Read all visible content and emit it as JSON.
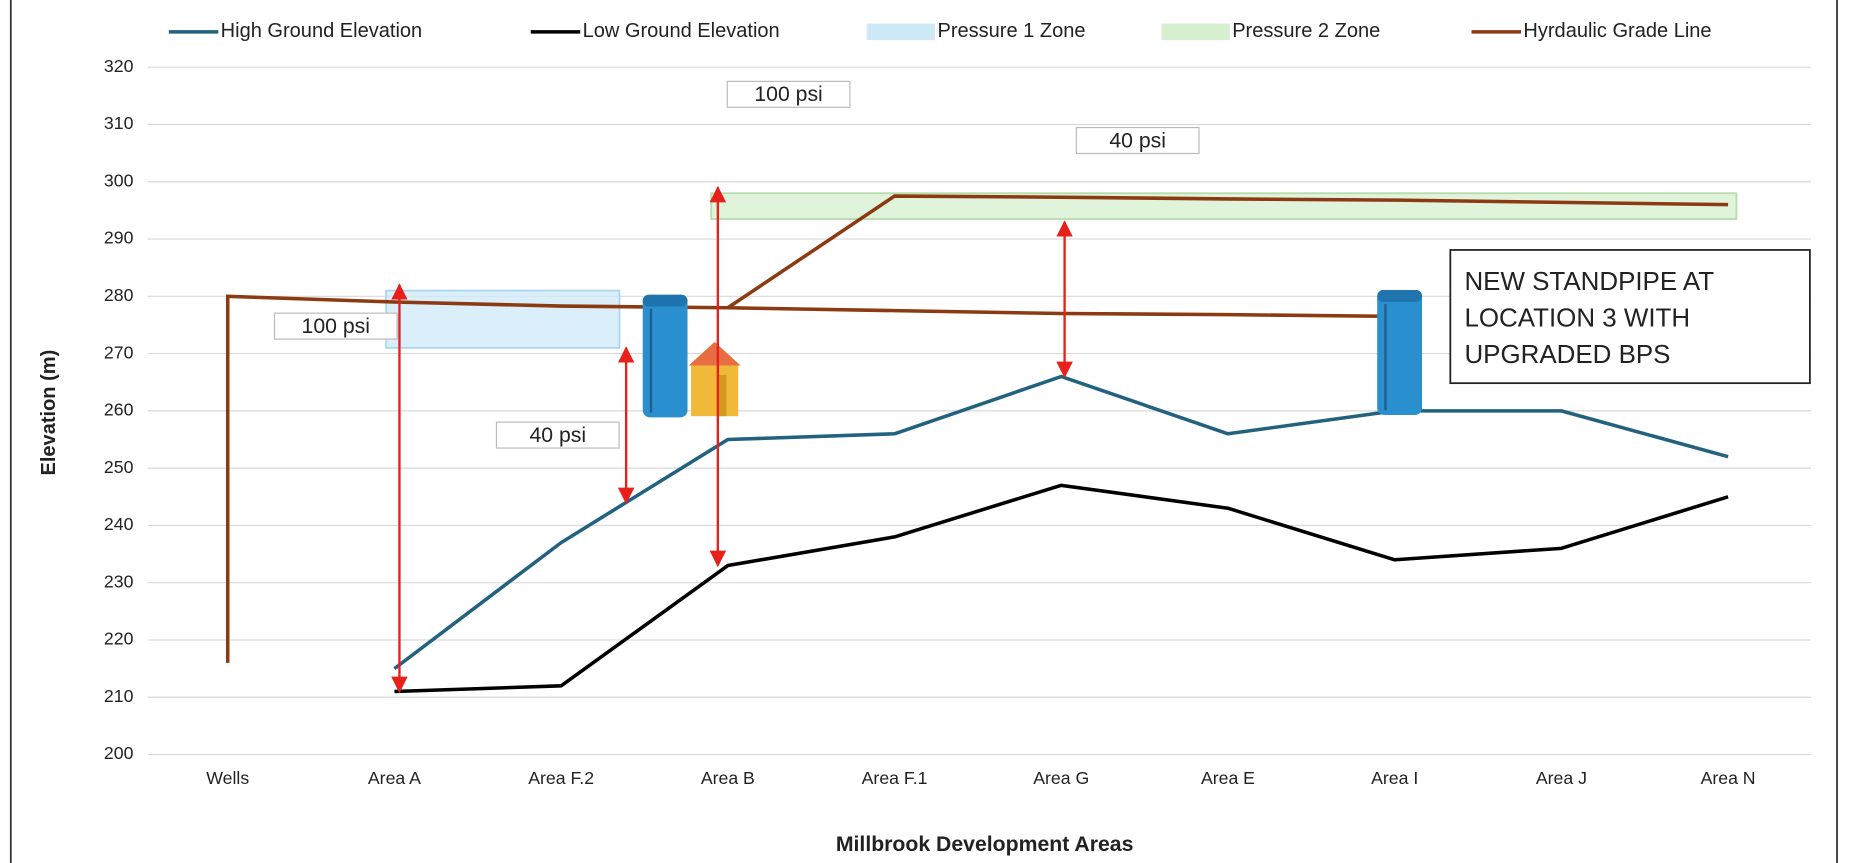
{
  "chart_data": {
    "type": "line",
    "xlabel": "Millbrook Development Areas",
    "ylabel": "Elevation (m)",
    "categories": [
      "Wells",
      "Area A",
      "Area F.2",
      "Area B",
      "Area F.1",
      "Area G",
      "Area E",
      "Area I",
      "Area J",
      "Area N"
    ],
    "ylim": [
      200,
      320
    ],
    "yticks": [
      200,
      210,
      220,
      230,
      240,
      250,
      260,
      270,
      280,
      290,
      300,
      310,
      320
    ],
    "grid": true,
    "series": [
      {
        "name": "High Ground Elevation",
        "color": "#22627f",
        "values": [
          null,
          215,
          237,
          255,
          256,
          266,
          256,
          260,
          260,
          252
        ]
      },
      {
        "name": "Low Ground Elevation",
        "color": "#000000",
        "values": [
          null,
          211,
          212,
          233,
          238,
          247,
          243,
          234,
          236,
          245
        ]
      }
    ],
    "zones": [
      {
        "name": "Pressure 1 Zone",
        "color": "#cde9f8",
        "edge": "#a9d6f0",
        "x": [
          0.95,
          2.35
        ],
        "y": [
          271,
          281
        ]
      },
      {
        "name": "Pressure 2 Zone",
        "color": "#d5efcf",
        "edge": "#b5dcaa",
        "x": [
          2.9,
          9.05
        ],
        "y": [
          293.5,
          298
        ]
      }
    ],
    "hgl": {
      "name": "Hyrdaulic Grade Line",
      "color": "#8b3a12",
      "x": [
        0,
        0,
        1,
        2,
        3,
        4,
        5,
        6,
        7,
        null,
        3,
        4,
        5,
        6,
        7,
        8,
        9
      ],
      "values": [
        216,
        280,
        279,
        278.3,
        278,
        277.5,
        277,
        276.8,
        276.5,
        null,
        278,
        297.5,
        297.3,
        297,
        296.8,
        296.4,
        296
      ]
    },
    "annotations": [
      {
        "text": "100 psi",
        "x": 1.03,
        "from": 211,
        "to": 282
      },
      {
        "text": "40 psi",
        "x": 2.39,
        "from": 244,
        "to": 271
      },
      {
        "text": "100 psi",
        "x": 2.94,
        "from": 233,
        "to": 299
      },
      {
        "text": "40 psi",
        "x": 5.02,
        "from": 266,
        "to": 293
      }
    ],
    "note": [
      "NEW STANDPIPE AT",
      "LOCATION 3 WITH",
      "UPGRADED BPS"
    ]
  }
}
